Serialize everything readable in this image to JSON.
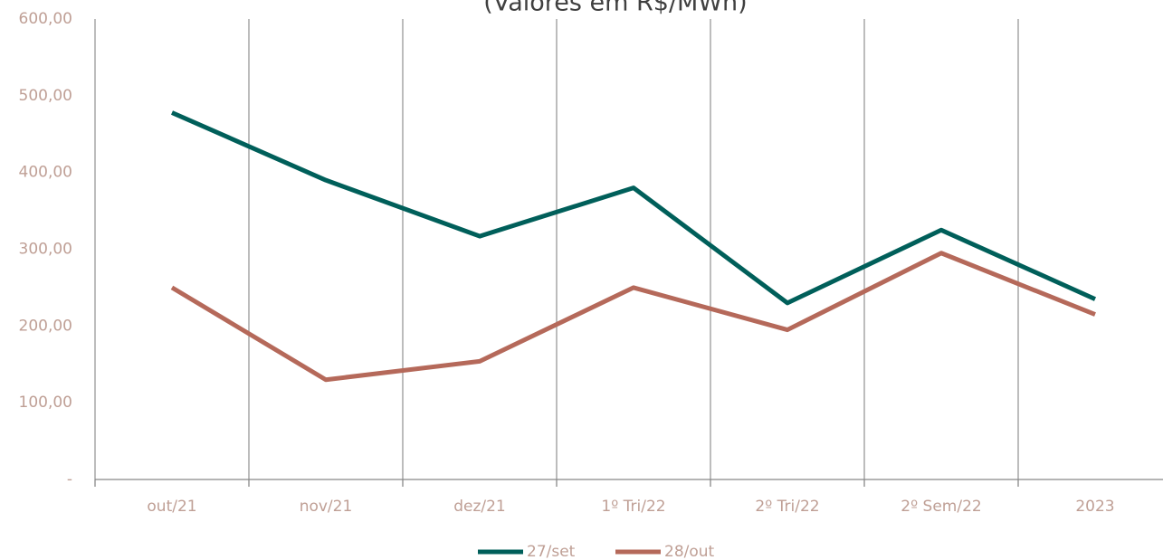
{
  "chart_data": {
    "type": "line",
    "title": "(Valores em R$/MWh)",
    "categories": [
      "out/21",
      "nov/21",
      "dez/21",
      "1º Tri/22",
      "2º Tri/22",
      "2º Sem/22",
      "2023"
    ],
    "series": [
      {
        "name": "27/set",
        "color": "#005f5a",
        "values": [
          478,
          390,
          317,
          380,
          230,
          325,
          235
        ]
      },
      {
        "name": "28/out",
        "color": "#b5695a",
        "values": [
          250,
          130,
          154,
          250,
          195,
          295,
          215
        ]
      }
    ],
    "ylim": [
      0,
      600
    ],
    "yticks": [
      {
        "value": 0,
        "label": "-"
      },
      {
        "value": 100,
        "label": "100,00"
      },
      {
        "value": 200,
        "label": "200,00"
      },
      {
        "value": 300,
        "label": "300,00"
      },
      {
        "value": 400,
        "label": "400,00"
      },
      {
        "value": 500,
        "label": "500,00"
      },
      {
        "value": 600,
        "label": "600,00"
      }
    ],
    "grid": true,
    "legend": "bottom"
  }
}
